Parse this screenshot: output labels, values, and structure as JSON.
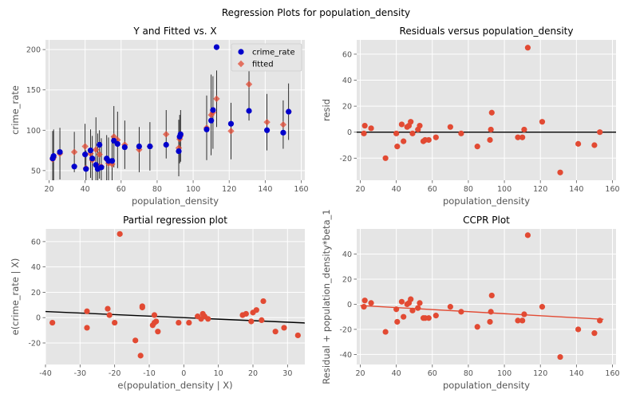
{
  "suptitle": "Regression Plots for population_density",
  "colors": {
    "panel_bg": "#e5e5e5",
    "grid": "#ffffff",
    "red": "#e24a33",
    "blue": "#0000cc",
    "line": "#000000",
    "errorbar": "#000000"
  },
  "chart_data": [
    {
      "id": "fitted",
      "type": "scatter",
      "title": "Y and Fitted vs. X",
      "xlabel": "population_density",
      "ylabel": "crime_rate",
      "xlim": [
        18,
        162
      ],
      "ylim": [
        38,
        212
      ],
      "xticks": [
        20,
        40,
        60,
        80,
        100,
        120,
        140,
        160
      ],
      "yticks": [
        50,
        100,
        150,
        200
      ],
      "legend": [
        "crime_rate",
        "fitted"
      ],
      "legend_placement": "top-right",
      "grid": true,
      "x": [
        22,
        22.5,
        26,
        34,
        40,
        40.5,
        43,
        44,
        46,
        47,
        48,
        49,
        52,
        53,
        55,
        56,
        58,
        62,
        70,
        76,
        85,
        92,
        92.5,
        93,
        107.5,
        110,
        111,
        113,
        121,
        131,
        141,
        150,
        153
      ],
      "crime_rate": [
        65,
        68,
        73,
        55,
        70,
        52,
        75,
        65,
        57,
        52,
        82,
        54,
        65,
        62,
        62,
        87,
        83,
        79,
        80,
        80,
        82,
        74,
        92,
        95,
        101,
        112,
        125,
        203,
        108,
        124,
        100,
        97,
        123
      ],
      "fitted": [
        64,
        66,
        71,
        73,
        80,
        53,
        71,
        63,
        76,
        56,
        70,
        55,
        64,
        59,
        58,
        92,
        88,
        82,
        76,
        80,
        95,
        78,
        89,
        93,
        103,
        119,
        122,
        139,
        99,
        157,
        110,
        107,
        123
      ],
      "error": [
        35,
        35,
        32,
        25,
        28,
        22,
        30,
        30,
        40,
        40,
        30,
        35,
        30,
        32,
        35,
        38,
        35,
        30,
        28,
        30,
        30,
        35,
        30,
        32,
        40,
        50,
        45,
        35,
        35,
        45,
        35,
        30,
        35
      ]
    },
    {
      "id": "resid",
      "type": "scatter",
      "title": "Residuals versus population_density",
      "xlabel": "population_density",
      "ylabel": "resid",
      "xlim": [
        18,
        162
      ],
      "ylim": [
        -37,
        71
      ],
      "xticks": [
        20,
        40,
        60,
        80,
        100,
        120,
        140,
        160
      ],
      "yticks": [
        -20,
        0,
        20,
        40,
        60
      ],
      "hline": 0,
      "grid": true,
      "x": [
        22,
        22.5,
        26,
        34,
        40,
        40.5,
        43,
        44,
        46,
        47,
        48,
        49,
        52,
        53,
        55,
        56,
        58,
        62,
        70,
        76,
        85,
        92,
        92.5,
        93,
        107.5,
        110,
        111,
        113,
        121,
        131,
        141,
        150,
        153
      ],
      "y": [
        -1,
        5,
        3,
        -20,
        -1,
        -11,
        6,
        -7,
        4,
        5,
        8,
        -1,
        2,
        5,
        -7,
        -6,
        -6,
        -4,
        4,
        -1,
        -11,
        -6,
        2,
        15,
        -4,
        -4,
        2,
        65,
        8,
        -31,
        -9,
        -10,
        0
      ]
    },
    {
      "id": "partial",
      "type": "scatter",
      "title": "Partial regression plot",
      "xlabel": "e(population_density | X)",
      "ylabel": "e(crime_rate | X)",
      "xlim": [
        -40,
        35
      ],
      "ylim": [
        -37,
        70
      ],
      "xticks": [
        -40,
        -30,
        -20,
        -10,
        0,
        10,
        20,
        30
      ],
      "yticks": [
        -20,
        0,
        20,
        40,
        60
      ],
      "fit_line": {
        "slope": -0.12,
        "intercept": 0
      },
      "grid": true,
      "x": [
        -38,
        -28,
        -28,
        -22,
        -21.5,
        -20,
        -18.5,
        -14,
        -12.5,
        -12,
        -12,
        -9,
        -8.5,
        -8.5,
        -8,
        -7.5,
        -1.5,
        1.5,
        4,
        5,
        5.5,
        6,
        7,
        17,
        18,
        19.5,
        20,
        21,
        22.5,
        23,
        26.5,
        29,
        33
      ],
      "y": [
        -4,
        -8,
        5,
        7,
        2,
        -4,
        66,
        -18,
        -30,
        8,
        9,
        -6,
        2,
        -4,
        -3,
        -11,
        -4,
        -4,
        1,
        -1,
        3,
        1,
        -1,
        2,
        3,
        -3,
        4,
        6,
        -2,
        13,
        -11,
        -8,
        -14
      ]
    },
    {
      "id": "ccpr",
      "type": "scatter",
      "title": "CCPR Plot",
      "xlabel": "population_density",
      "ylabel": "Residual + population_density*beta_1",
      "xlim": [
        18,
        162
      ],
      "ylim": [
        -48,
        60
      ],
      "xticks": [
        20,
        40,
        60,
        80,
        100,
        120,
        140,
        160
      ],
      "yticks": [
        -40,
        -20,
        0,
        20,
        40
      ],
      "fit_line": {
        "x": [
          20,
          155
        ],
        "y": [
          -1,
          -12
        ]
      },
      "grid": true,
      "x": [
        22,
        22.5,
        26,
        34,
        40,
        40.5,
        43,
        44,
        46,
        47,
        48,
        49,
        52,
        53,
        55,
        56,
        58,
        62,
        70,
        76,
        85,
        92,
        92.5,
        93,
        107.5,
        110,
        111,
        113,
        121,
        131,
        141,
        150,
        153
      ],
      "y": [
        -2,
        3,
        1,
        -22,
        -4,
        -14,
        2,
        -10,
        0,
        1,
        4,
        -5,
        -3,
        1,
        -11,
        -11,
        -11,
        -9,
        -2,
        -6,
        -18,
        -14,
        -6,
        7,
        -13,
        -13,
        -8,
        55,
        -2,
        -42,
        -20,
        -23,
        -13
      ]
    }
  ]
}
